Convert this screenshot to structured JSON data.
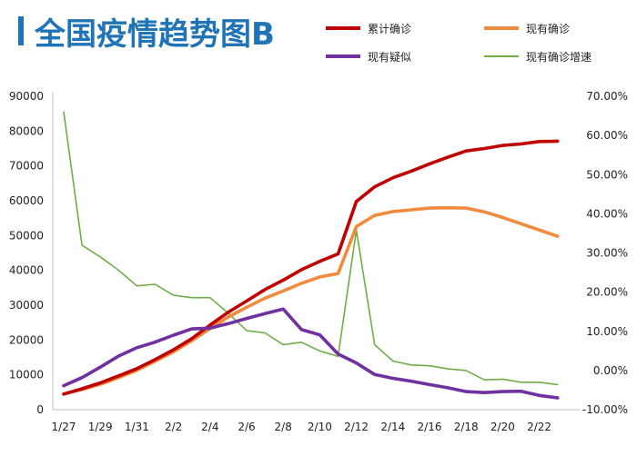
{
  "chart_data": {
    "type": "line",
    "title": "全国疫情趋势图B",
    "x": [
      "1/27",
      "1/28",
      "1/29",
      "1/30",
      "1/31",
      "2/1",
      "2/2",
      "2/3",
      "2/4",
      "2/5",
      "2/6",
      "2/7",
      "2/8",
      "2/9",
      "2/10",
      "2/11",
      "2/12",
      "2/13",
      "2/14",
      "2/15",
      "2/16",
      "2/17",
      "2/18",
      "2/19",
      "2/20",
      "2/21",
      "2/22",
      "2/23"
    ],
    "x_tick_labels": [
      "1/27",
      "1/29",
      "1/31",
      "2/2",
      "2/4",
      "2/6",
      "2/8",
      "2/10",
      "2/12",
      "2/14",
      "2/16",
      "2/18",
      "2/20",
      "2/22"
    ],
    "y_left": {
      "min": 0,
      "max": 90000,
      "ticks": [
        "0",
        "10000",
        "20000",
        "30000",
        "40000",
        "50000",
        "60000",
        "70000",
        "80000",
        "90000"
      ]
    },
    "y_right": {
      "min": -10,
      "max": 70,
      "ticks": [
        "-10.00%",
        "0.00%",
        "10.00%",
        "20.00%",
        "30.00%",
        "40.00%",
        "50.00%",
        "60.00%",
        "70.00%"
      ]
    },
    "legend_position": "top-right",
    "series": [
      {
        "name": "累计确诊",
        "axis": "left",
        "color": "#c00000",
        "values": [
          4500,
          6000,
          7700,
          9700,
          11800,
          14400,
          17200,
          20400,
          24300,
          28000,
          31200,
          34500,
          37200,
          40200,
          42600,
          44700,
          59800,
          64000,
          66600,
          68500,
          70600,
          72500,
          74300,
          75000,
          75900,
          76300,
          77000,
          77100
        ]
      },
      {
        "name": "现有确诊",
        "axis": "left",
        "color": "#f08a3c",
        "values": [
          4500,
          5800,
          7300,
          9200,
          11300,
          13900,
          16600,
          19800,
          23300,
          26600,
          29400,
          32000,
          34100,
          36300,
          38100,
          39100,
          52600,
          55800,
          56900,
          57400,
          57900,
          58000,
          57900,
          56800,
          55200,
          53400,
          51600,
          49800
        ]
      },
      {
        "name": "现有疑似",
        "axis": "left",
        "color": "#7030a0",
        "values": [
          6900,
          9200,
          12200,
          15400,
          17800,
          19400,
          21400,
          23200,
          23400,
          24700,
          26200,
          27600,
          28900,
          23000,
          21500,
          16000,
          13400,
          10100,
          9000,
          8200,
          7200,
          6300,
          5200,
          4900,
          5200,
          5300,
          4100,
          3400
        ]
      },
      {
        "name": "现有确诊增速",
        "axis": "right",
        "color": "#70ad47",
        "values": [
          66.0,
          32.0,
          29.0,
          25.6,
          21.6,
          22.0,
          19.2,
          18.6,
          18.6,
          14.6,
          10.2,
          9.6,
          6.6,
          7.2,
          5.0,
          3.6,
          35.8,
          6.6,
          2.4,
          1.4,
          1.2,
          0.4,
          0.0,
          -2.4,
          -2.2,
          -3.0,
          -3.0,
          -3.6
        ]
      }
    ]
  }
}
